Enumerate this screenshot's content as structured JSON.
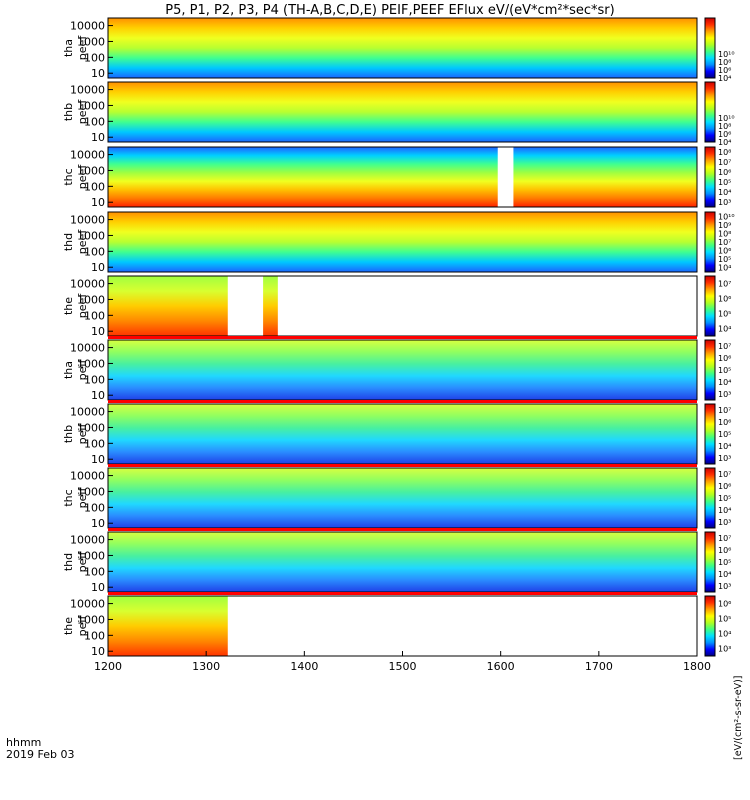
{
  "chart_data": {
    "type": "heatmap",
    "title": "P5, P1, P2, P3, P4 (TH-A,B,C,D,E) PEIF,PEEF EFlux eV/(eV*cm²*sec*sr)",
    "x_axis": {
      "range": [
        1200,
        1800
      ],
      "ticks": [
        "1200",
        "1300",
        "1400",
        "1500",
        "1600",
        "1700",
        "1800"
      ],
      "label_line1": "hhmm",
      "label_line2": "2019 Feb 03"
    },
    "y_axis_ticks": [
      "10",
      "100",
      "1000",
      "10000"
    ],
    "y_scale": "log",
    "y_range": [
      5,
      30000
    ],
    "colorbar_label": "[eV/(cm²-s-sr-eV)]",
    "colormap": [
      "#000080",
      "#0000ff",
      "#0090ff",
      "#00e0ff",
      "#40ff80",
      "#b0ff20",
      "#ffff00",
      "#ffa000",
      "#ff3000",
      "#cc0000"
    ],
    "panels": [
      {
        "probe": "tha",
        "species": "peef",
        "cbar_ticks": [
          "10⁴",
          "10⁶",
          "10⁸",
          "10¹⁰"
        ],
        "cbar_range": [
          3,
          10.5
        ],
        "columns": [
          [
            1200,
            1800
          ]
        ]
      },
      {
        "probe": "thb",
        "species": "peef",
        "cbar_ticks": [
          "10⁴",
          "10⁶",
          "10⁸",
          "10¹⁰"
        ],
        "cbar_range": [
          3,
          10.5
        ],
        "columns": [
          [
            1200,
            1800
          ]
        ]
      },
      {
        "probe": "thc",
        "species": "peef",
        "cbar_ticks": [
          "10³",
          "10⁴",
          "10⁵",
          "10⁶",
          "10⁷",
          "10⁸"
        ],
        "cbar_range": [
          2.5,
          8.5
        ],
        "columns": [
          [
            1200,
            1597
          ],
          [
            1613,
            1800
          ]
        ]
      },
      {
        "probe": "thd",
        "species": "peef",
        "cbar_ticks": [
          "10⁴",
          "10⁵",
          "10⁶",
          "10⁷",
          "10⁸",
          "10⁹",
          "10¹⁰"
        ],
        "cbar_range": [
          3.5,
          10.5
        ],
        "columns": [
          [
            1200,
            1800
          ]
        ]
      },
      {
        "probe": "the",
        "species": "peef",
        "cbar_ticks": [
          "10⁴",
          "10⁵",
          "10⁶",
          "10⁷"
        ],
        "cbar_range": [
          3.5,
          7.5
        ],
        "columns": [
          [
            1200,
            1322
          ],
          [
            1358,
            1373
          ]
        ]
      },
      {
        "probe": "tha",
        "species": "peif",
        "cbar_ticks": [
          "10³",
          "10⁴",
          "10⁵",
          "10⁶",
          "10⁷"
        ],
        "cbar_range": [
          2.5,
          7.5
        ],
        "columns": [
          [
            1200,
            1800
          ]
        ]
      },
      {
        "probe": "thb",
        "species": "peif",
        "cbar_ticks": [
          "10³",
          "10⁴",
          "10⁵",
          "10⁶",
          "10⁷"
        ],
        "cbar_range": [
          2.5,
          7.5
        ],
        "columns": [
          [
            1200,
            1800
          ]
        ]
      },
      {
        "probe": "thc",
        "species": "peif",
        "cbar_ticks": [
          "10³",
          "10⁴",
          "10⁵",
          "10⁶",
          "10⁷"
        ],
        "cbar_range": [
          2.5,
          7.5
        ],
        "columns": [
          [
            1200,
            1800
          ]
        ]
      },
      {
        "probe": "thd",
        "species": "peif",
        "cbar_ticks": [
          "10³",
          "10⁴",
          "10⁵",
          "10⁶",
          "10⁷"
        ],
        "cbar_range": [
          2.5,
          7.5
        ],
        "columns": [
          [
            1200,
            1800
          ]
        ]
      },
      {
        "probe": "the",
        "species": "peif",
        "cbar_ticks": [
          "10³",
          "10⁴",
          "10⁵",
          "10⁶"
        ],
        "cbar_range": [
          2.5,
          6.5
        ],
        "columns": [
          [
            1200,
            1322
          ]
        ]
      }
    ]
  }
}
